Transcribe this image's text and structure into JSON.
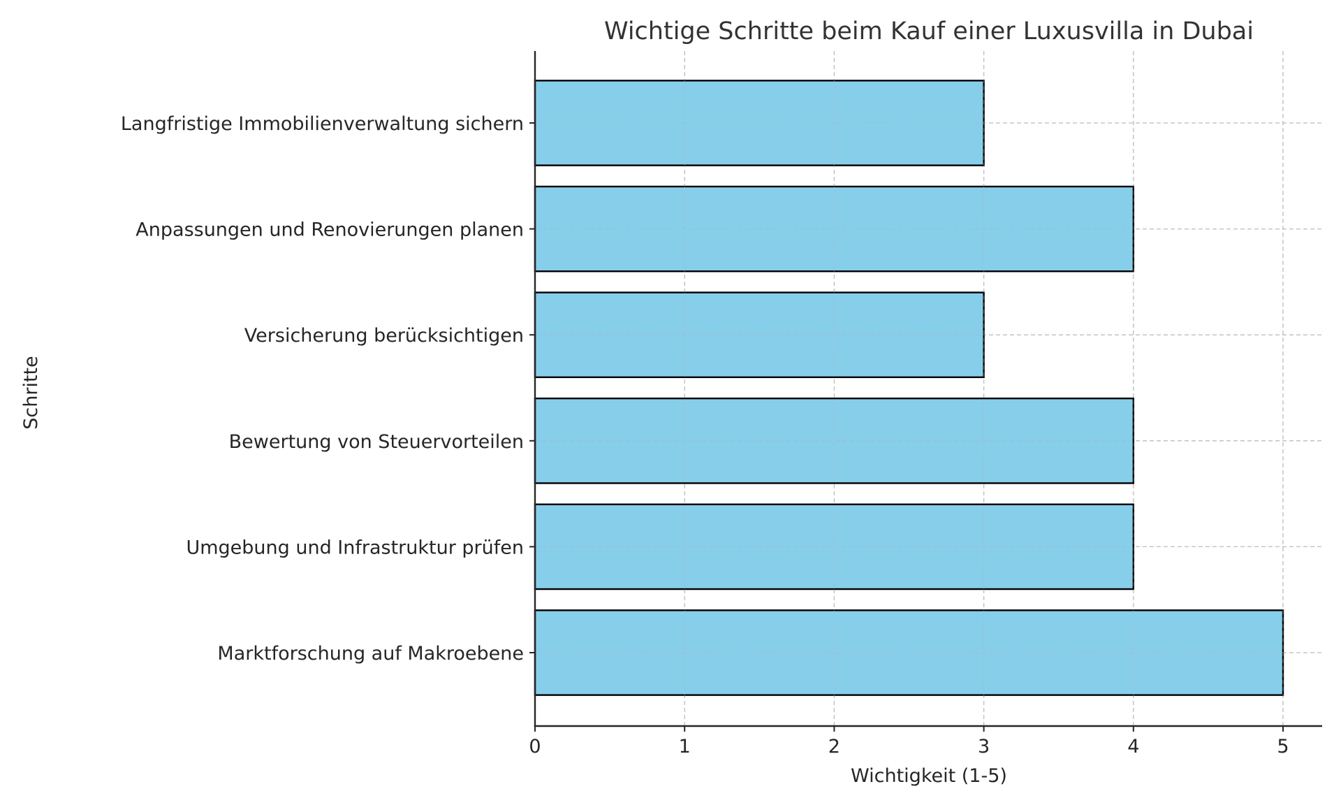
{
  "chart_data": {
    "type": "bar",
    "orientation": "horizontal",
    "title": "Wichtige Schritte beim Kauf einer Luxusvilla in Dubai",
    "xlabel": "Wichtigkeit (1-5)",
    "ylabel": "Schritte",
    "categories": [
      "Marktforschung auf Makroebene",
      "Umgebung und Infrastruktur prüfen",
      "Bewertung von Steuervorteilen",
      "Versicherung berücksichtigen",
      "Anpassungen und Renovierungen planen",
      "Langfristige Immobilienverwaltung sichern"
    ],
    "values": [
      5,
      4,
      4,
      3,
      4,
      3
    ],
    "xlim": [
      0,
      5.26
    ],
    "xticks": [
      0,
      1,
      2,
      3,
      4,
      5
    ],
    "grid": true,
    "grid_style": "dashed",
    "bar_color": "#87CEEB",
    "bar_edge_color": "#000000",
    "legend": null
  }
}
